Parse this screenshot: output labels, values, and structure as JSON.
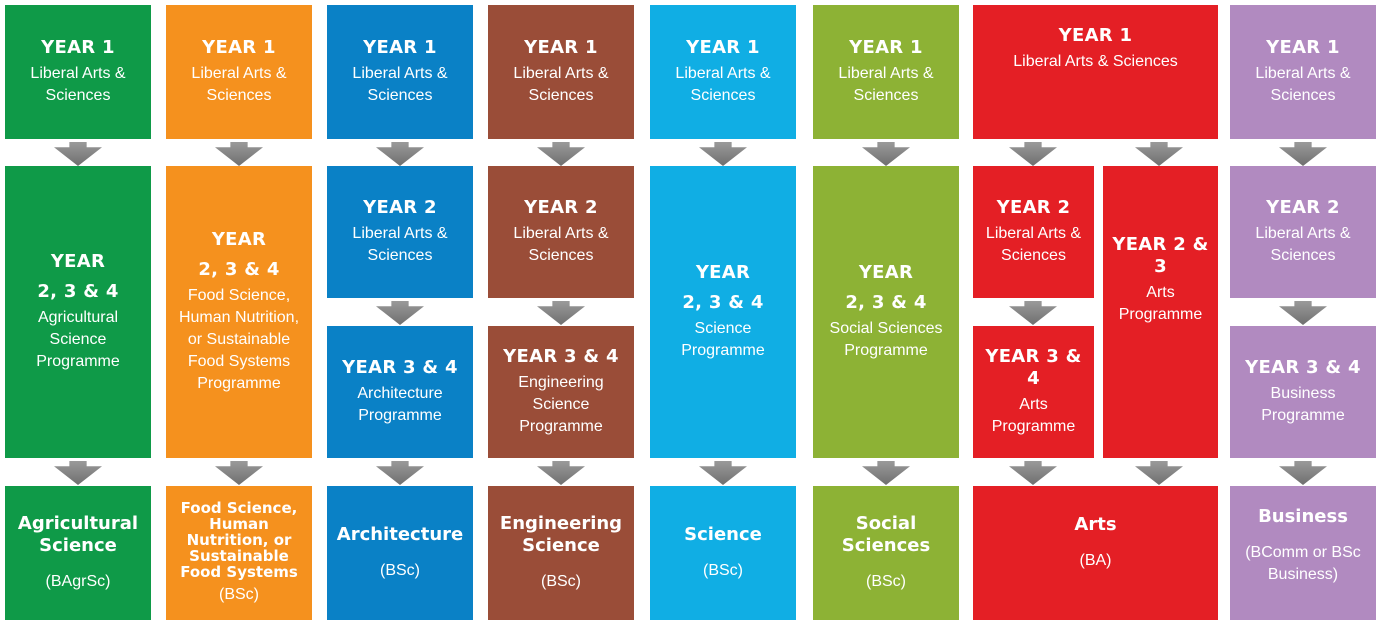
{
  "colors": {
    "agri": "#0f9a48",
    "food": "#f5911e",
    "arch": "#0a81c6",
    "eng": "#9a4d38",
    "sci": "#10aee4",
    "soc": "#8db235",
    "arts": "#e41f25",
    "bus": "#b18ac0"
  },
  "year1": {
    "heading": "YEAR 1",
    "text": "Liberal Arts & Sciences"
  },
  "year234": {
    "heading_a": "YEAR",
    "heading_b": "2, 3 & 4"
  },
  "year2": {
    "heading": "YEAR 2",
    "text": "Liberal Arts & Sciences"
  },
  "year34": {
    "heading": "YEAR 3 & 4"
  },
  "year23": {
    "heading": "YEAR 2 & 3"
  },
  "programmes": {
    "agri": "Agricultural Science Programme",
    "food": "Food Science, Human Nutrition, or Sustainable Food Systems Programme",
    "arch": "Architecture Programme",
    "eng": "Engineering Science Programme",
    "sci": "Science Programme",
    "soc": "Social Sciences Programme",
    "arts": "Arts Programme",
    "bus": "Business Programme"
  },
  "degrees": {
    "agri": {
      "name": "Agricultural Science",
      "award": "(BAgrSc)"
    },
    "food": {
      "name": "Food Science, Human Nutrition, or Sustainable Food Systems",
      "award": "(BSc)"
    },
    "arch": {
      "name": "Architecture",
      "award": "(BSc)"
    },
    "eng": {
      "name": "Engineering Science",
      "award": "(BSc)"
    },
    "sci": {
      "name": "Science",
      "award": "(BSc)"
    },
    "soc": {
      "name": "Social Sciences",
      "award": "(BSc)"
    },
    "arts": {
      "name": "Arts",
      "award": "(BA)"
    },
    "bus": {
      "name": "Business",
      "award": "(BComm or BSc Business)"
    }
  }
}
